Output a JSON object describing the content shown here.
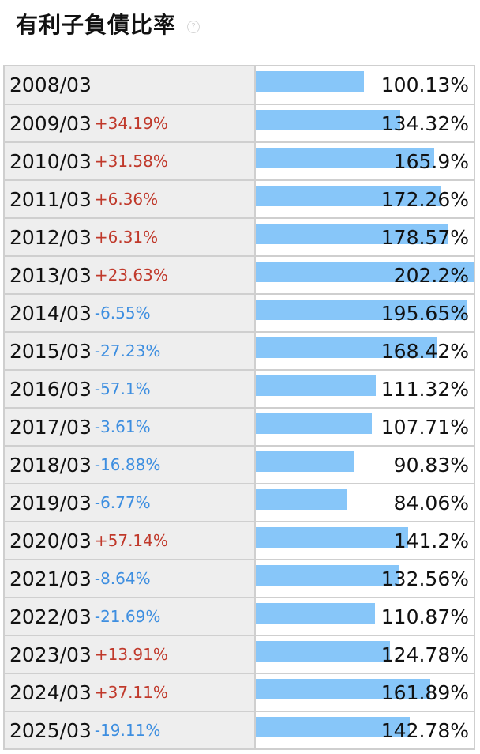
{
  "title": "有利子負債比率",
  "help_icon": "help-circle-icon",
  "colors": {
    "bar": "#87c6f9",
    "positive_change": "#c0392b",
    "negative_change": "#3d8ee0",
    "label_background": "#eeeeee",
    "border": "#cfcfcf"
  },
  "max_value": 202.2,
  "rows": [
    {
      "period": "2008/03",
      "change": "",
      "change_dir": "",
      "value": 100.13,
      "value_label": "100.13%"
    },
    {
      "period": "2009/03",
      "change": "+34.19%",
      "change_dir": "up",
      "value": 134.32,
      "value_label": "134.32%"
    },
    {
      "period": "2010/03",
      "change": "+31.58%",
      "change_dir": "up",
      "value": 165.9,
      "value_label": "165.9%"
    },
    {
      "period": "2011/03",
      "change": "+6.36%",
      "change_dir": "up",
      "value": 172.26,
      "value_label": "172.26%"
    },
    {
      "period": "2012/03",
      "change": "+6.31%",
      "change_dir": "up",
      "value": 178.57,
      "value_label": "178.57%"
    },
    {
      "period": "2013/03",
      "change": "+23.63%",
      "change_dir": "up",
      "value": 202.2,
      "value_label": "202.2%"
    },
    {
      "period": "2014/03",
      "change": "-6.55%",
      "change_dir": "down",
      "value": 195.65,
      "value_label": "195.65%"
    },
    {
      "period": "2015/03",
      "change": "-27.23%",
      "change_dir": "down",
      "value": 168.42,
      "value_label": "168.42%"
    },
    {
      "period": "2016/03",
      "change": "-57.1%",
      "change_dir": "down",
      "value": 111.32,
      "value_label": "111.32%"
    },
    {
      "period": "2017/03",
      "change": "-3.61%",
      "change_dir": "down",
      "value": 107.71,
      "value_label": "107.71%"
    },
    {
      "period": "2018/03",
      "change": "-16.88%",
      "change_dir": "down",
      "value": 90.83,
      "value_label": "90.83%"
    },
    {
      "period": "2019/03",
      "change": "-6.77%",
      "change_dir": "down",
      "value": 84.06,
      "value_label": "84.06%"
    },
    {
      "period": "2020/03",
      "change": "+57.14%",
      "change_dir": "up",
      "value": 141.2,
      "value_label": "141.2%"
    },
    {
      "period": "2021/03",
      "change": "-8.64%",
      "change_dir": "down",
      "value": 132.56,
      "value_label": "132.56%"
    },
    {
      "period": "2022/03",
      "change": "-21.69%",
      "change_dir": "down",
      "value": 110.87,
      "value_label": "110.87%"
    },
    {
      "period": "2023/03",
      "change": "+13.91%",
      "change_dir": "up",
      "value": 124.78,
      "value_label": "124.78%"
    },
    {
      "period": "2024/03",
      "change": "+37.11%",
      "change_dir": "up",
      "value": 161.89,
      "value_label": "161.89%"
    },
    {
      "period": "2025/03",
      "change": "-19.11%",
      "change_dir": "down",
      "value": 142.78,
      "value_label": "142.78%"
    }
  ]
}
